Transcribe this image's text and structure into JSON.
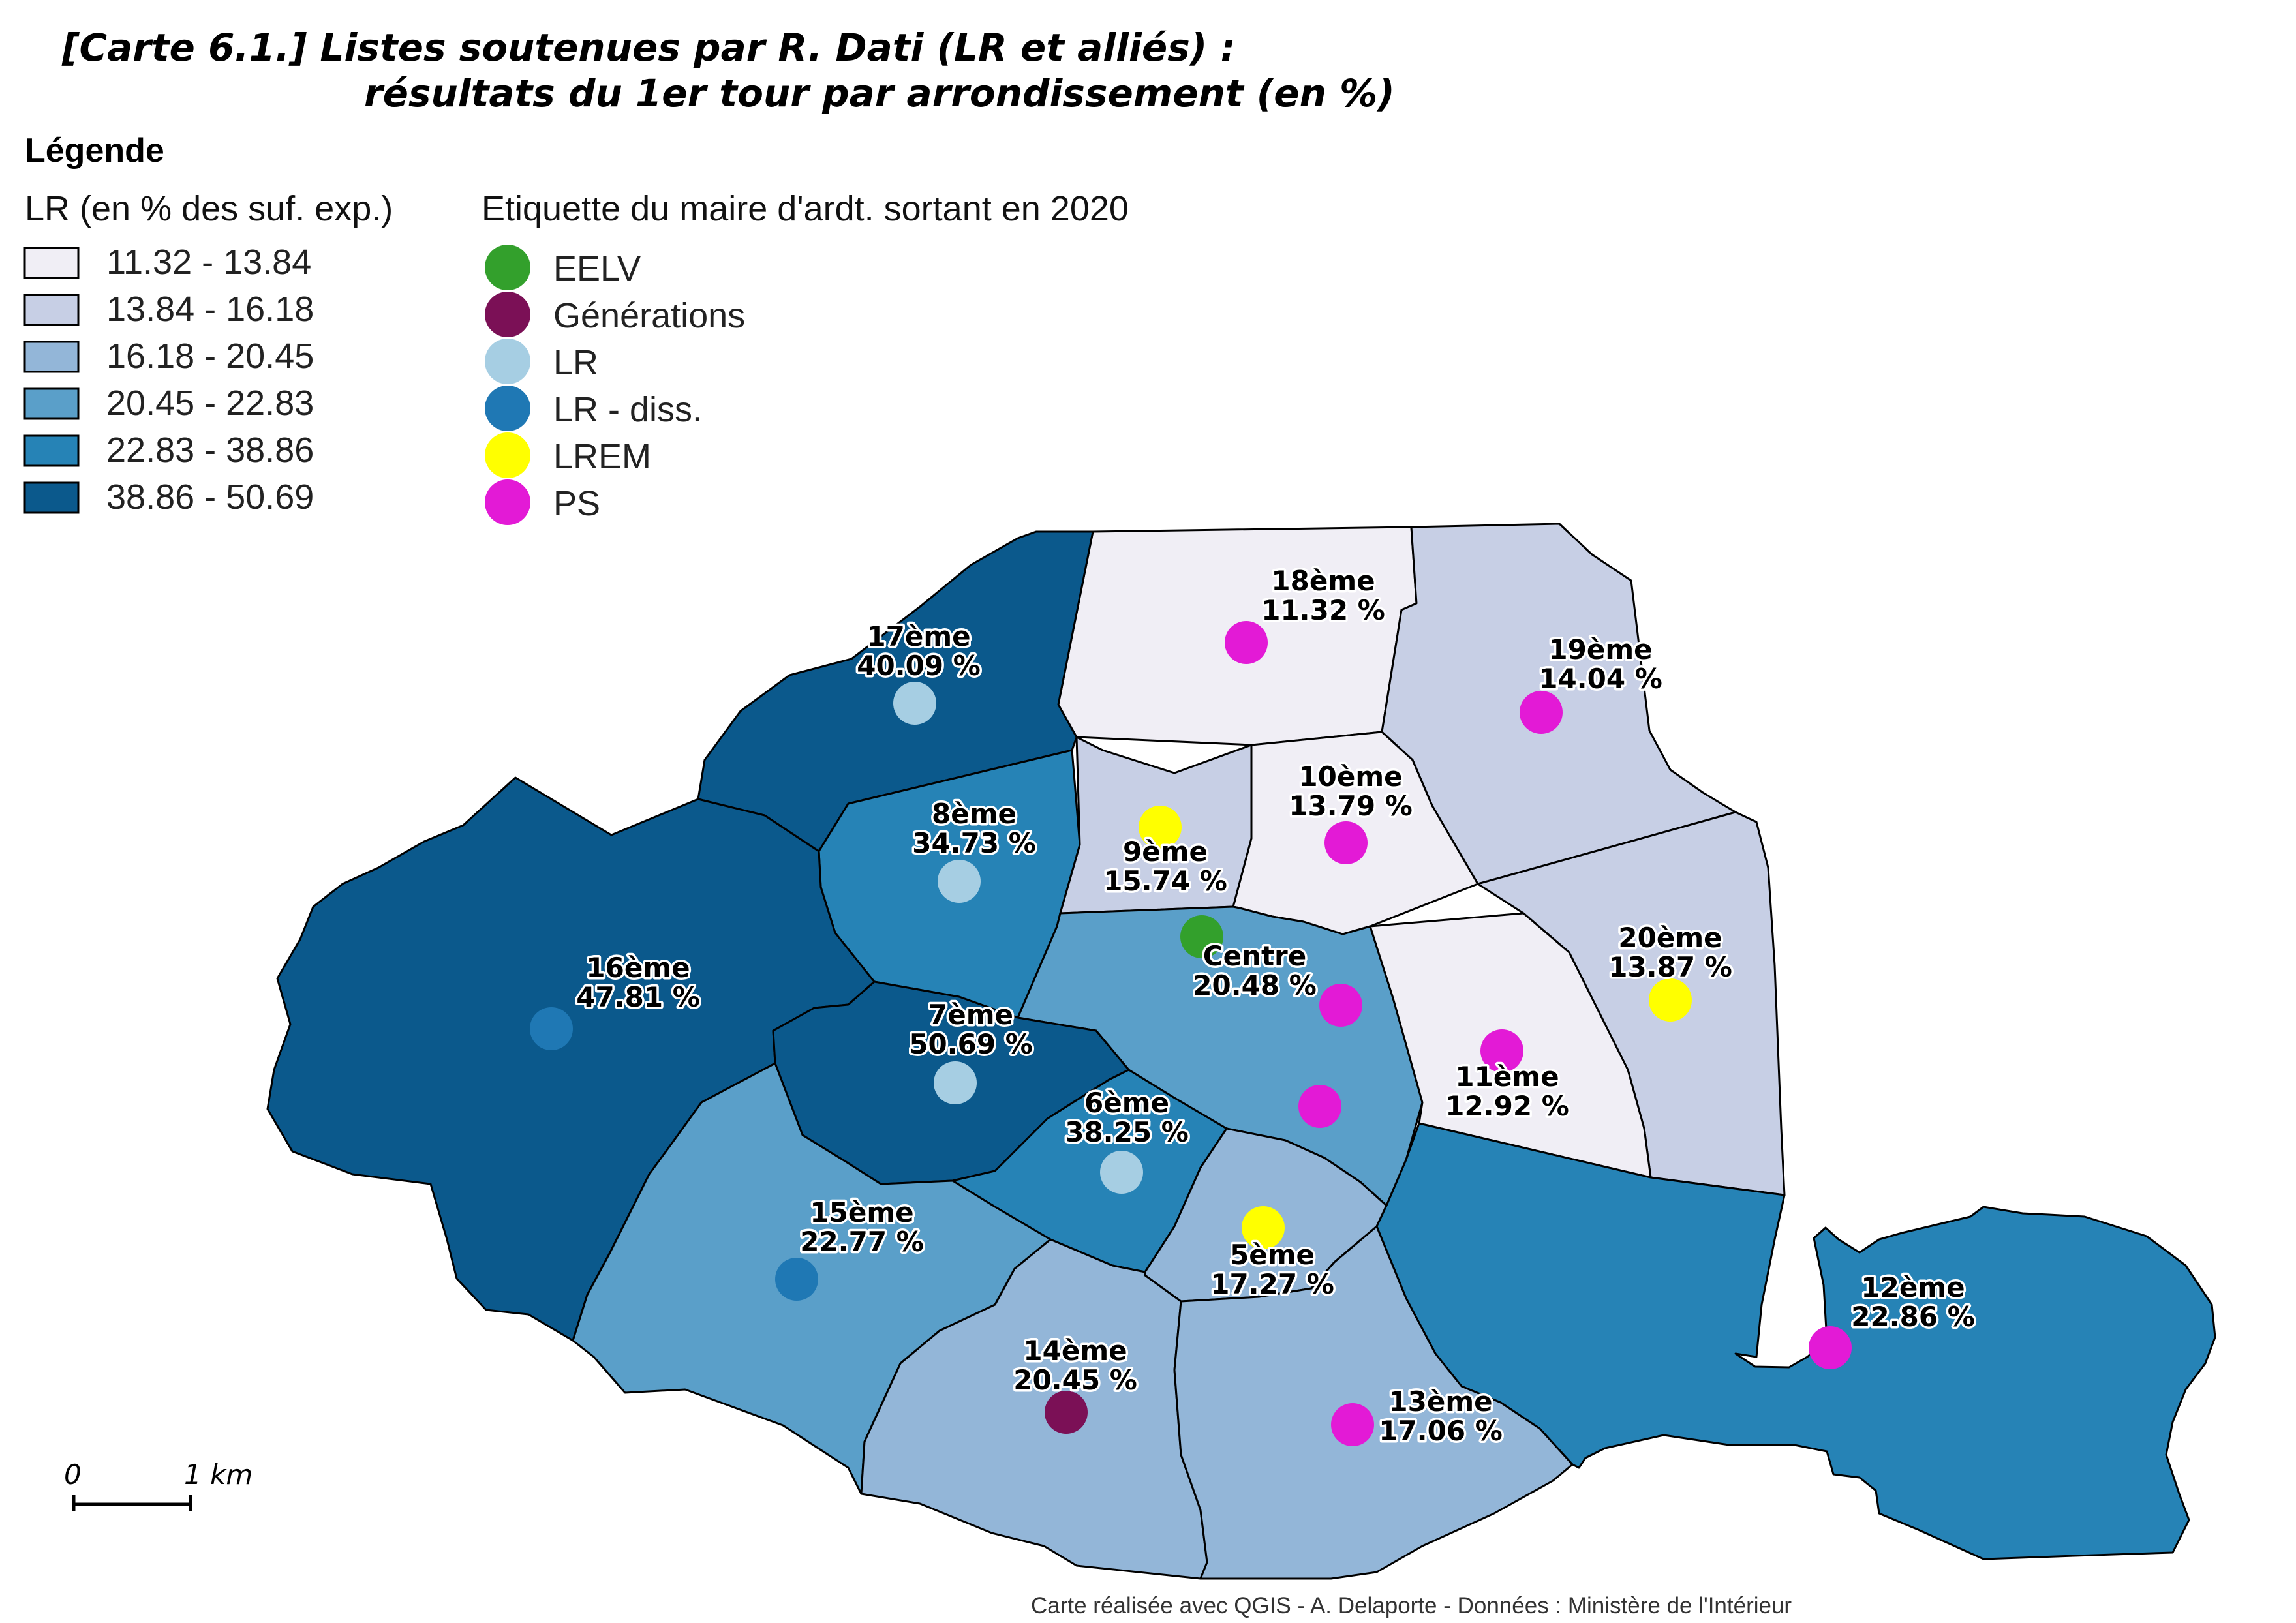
{
  "title": {
    "line1": "[Carte 6.1.] Listes soutenues par R. Dati (LR et alliés) :",
    "line2": "résultats du 1er tour par arrondissement (en %)"
  },
  "legend": {
    "heading": "Légende",
    "choropleth_title": "LR (en % des suf. exp.)",
    "classes": [
      {
        "label": "11.32 - 13.84",
        "color": "#f0eef5"
      },
      {
        "label": "13.84 - 16.18",
        "color": "#c7cfe5"
      },
      {
        "label": "16.18 - 20.45",
        "color": "#93b6d8"
      },
      {
        "label": "20.45 - 22.83",
        "color": "#5a9fc9"
      },
      {
        "label": "22.83 - 38.86",
        "color": "#2683b6"
      },
      {
        "label": "38.86 - 50.69",
        "color": "#0b598c"
      }
    ],
    "mayor_title": "Etiquette du maire d'ardt. sortant en 2020",
    "mayor_labels": [
      {
        "label": "EELV",
        "color": "#33a02c"
      },
      {
        "label": "Générations",
        "color": "#7b1056"
      },
      {
        "label": "LR",
        "color": "#a6cee3"
      },
      {
        "label": "LR - diss.",
        "color": "#1f78b4"
      },
      {
        "label": "LREM",
        "color": "#ffff00"
      },
      {
        "label": "PS",
        "color": "#e31ad6"
      }
    ]
  },
  "arrondissements": [
    {
      "name": "18ème",
      "value": "11.32 %",
      "class": 0,
      "mayor": "PS"
    },
    {
      "name": "19ème",
      "value": "14.04 %",
      "class": 1,
      "mayor": "PS"
    },
    {
      "name": "17ème",
      "value": "40.09 %",
      "class": 5,
      "mayor": "LR"
    },
    {
      "name": "10ème",
      "value": "13.79 %",
      "class": 0,
      "mayor": "PS"
    },
    {
      "name": "8ème",
      "value": "34.73 %",
      "class": 4,
      "mayor": "LR"
    },
    {
      "name": "9ème",
      "value": "15.74 %",
      "class": 1,
      "mayor": "LREM"
    },
    {
      "name": "Centre",
      "value": "20.48 %",
      "class": 3,
      "mayor": "EELV"
    },
    {
      "name": "20ème",
      "value": "13.87 %",
      "class": 1,
      "mayor": "LREM"
    },
    {
      "name": "16ème",
      "value": "47.81 %",
      "class": 5,
      "mayor": "LR - diss."
    },
    {
      "name": "7ème",
      "value": "50.69 %",
      "class": 5,
      "mayor": "LR"
    },
    {
      "name": "11ème",
      "value": "12.92 %",
      "class": 0,
      "mayor": "PS"
    },
    {
      "name": "6ème",
      "value": "38.25 %",
      "class": 4,
      "mayor": "LR"
    },
    {
      "name": "15ème",
      "value": "22.77 %",
      "class": 3,
      "mayor": "LR - diss."
    },
    {
      "name": "5ème",
      "value": "17.27 %",
      "class": 2,
      "mayor": "LREM"
    },
    {
      "name": "12ème",
      "value": "22.86 %",
      "class": 4,
      "mayor": "PS"
    },
    {
      "name": "14ème",
      "value": "20.45 %",
      "class": 2,
      "mayor": "Générations"
    },
    {
      "name": "13ème",
      "value": "17.06 %",
      "class": 2,
      "mayor": "PS"
    }
  ],
  "scale_bar": {
    "start": "0",
    "end": "1 km"
  },
  "credit": "Carte réalisée avec QGIS - A. Delaporte - Données : Ministère de l'Intérieur"
}
